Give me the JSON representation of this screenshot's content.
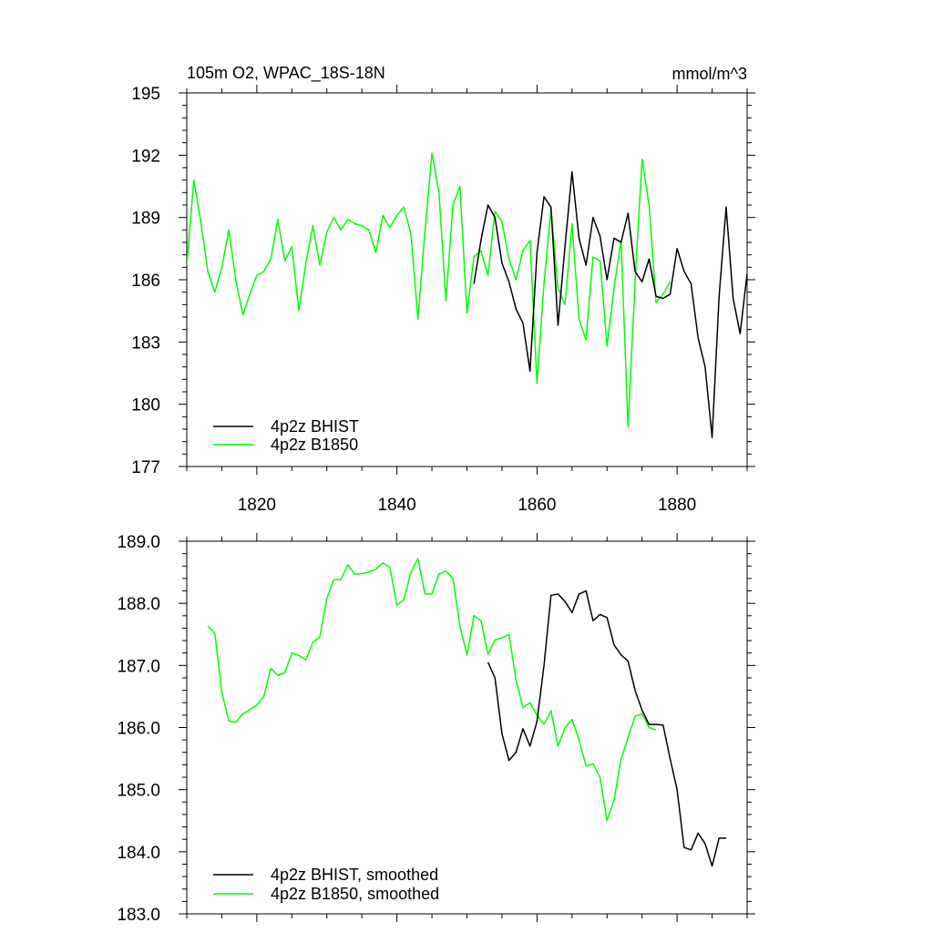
{
  "chart_data": [
    {
      "type": "line",
      "title": "105m O2, WPAC_18S-18N",
      "units": "mmol/m^3",
      "xlim": [
        1810,
        1890
      ],
      "ylim": [
        177,
        195
      ],
      "xticks": [
        1820,
        1840,
        1860,
        1880
      ],
      "xtick_labels": [
        "1820",
        "1840",
        "1860",
        "1880"
      ],
      "yticks": [
        177,
        180,
        183,
        186,
        189,
        192,
        195
      ],
      "ytick_labels": [
        "177",
        "180",
        "183",
        "186",
        "189",
        "192",
        "195"
      ],
      "legend": "bottom-left",
      "series": [
        {
          "name": "4p2z BHIST",
          "color": "#000000",
          "x": [
            1851,
            1852,
            1853,
            1854,
            1855,
            1856,
            1857,
            1858,
            1859,
            1860,
            1861,
            1862,
            1863,
            1864,
            1865,
            1866,
            1867,
            1868,
            1869,
            1870,
            1871,
            1872,
            1873,
            1874,
            1875,
            1876,
            1877,
            1878,
            1879,
            1880,
            1881,
            1882,
            1883,
            1884,
            1885,
            1886,
            1887,
            1888,
            1889,
            1890
          ],
          "y": [
            185.8,
            187.9,
            189.6,
            189.0,
            186.8,
            185.9,
            184.6,
            183.9,
            181.6,
            187.3,
            190.0,
            189.5,
            183.8,
            187.6,
            191.2,
            188.0,
            186.7,
            189.0,
            188.1,
            186.0,
            188.0,
            187.8,
            189.2,
            186.4,
            185.9,
            187.0,
            185.2,
            185.1,
            185.3,
            187.5,
            186.4,
            185.8,
            183.2,
            181.8,
            178.4,
            185.2,
            189.5,
            185.1,
            183.4,
            186.3
          ]
        },
        {
          "name": "4p2z B1850",
          "color": "#00ff00",
          "x": [
            1810,
            1811,
            1812,
            1813,
            1814,
            1815,
            1816,
            1817,
            1818,
            1819,
            1820,
            1821,
            1822,
            1823,
            1824,
            1825,
            1826,
            1827,
            1828,
            1829,
            1830,
            1831,
            1832,
            1833,
            1834,
            1835,
            1836,
            1837,
            1838,
            1839,
            1840,
            1841,
            1842,
            1843,
            1844,
            1845,
            1846,
            1847,
            1848,
            1849,
            1850,
            1851,
            1852,
            1853,
            1854,
            1855,
            1856,
            1857,
            1858,
            1859,
            1860,
            1861,
            1862,
            1863,
            1864,
            1865,
            1866,
            1867,
            1868,
            1869,
            1870,
            1871,
            1872,
            1873,
            1874,
            1875,
            1876,
            1877,
            1878,
            1879
          ],
          "y": [
            186.7,
            190.8,
            188.8,
            186.4,
            185.4,
            186.6,
            188.4,
            186.0,
            184.3,
            185.3,
            186.2,
            186.4,
            187.0,
            188.9,
            186.9,
            187.6,
            184.5,
            186.8,
            188.6,
            186.7,
            188.3,
            189.0,
            188.4,
            188.9,
            188.7,
            188.6,
            188.4,
            187.3,
            189.1,
            188.5,
            189.1,
            189.5,
            188.2,
            184.1,
            188.3,
            192.1,
            190.2,
            185.0,
            189.6,
            190.5,
            184.4,
            187.1,
            187.4,
            186.2,
            189.3,
            188.8,
            187.0,
            186.0,
            187.4,
            187.9,
            181.0,
            185.8,
            189.4,
            185.6,
            184.8,
            188.7,
            184.1,
            183.1,
            187.1,
            186.9,
            182.8,
            185.6,
            187.9,
            178.9,
            185.9,
            191.8,
            189.6,
            184.9,
            185.3,
            185.9
          ]
        }
      ]
    },
    {
      "type": "line",
      "xlim": [
        1810,
        1890
      ],
      "ylim": [
        183.0,
        189.0
      ],
      "xticks": [
        1820,
        1840,
        1860,
        1880
      ],
      "xtick_labels": [
        "",
        "",
        "",
        ""
      ],
      "yticks": [
        183.0,
        184.0,
        185.0,
        186.0,
        187.0,
        188.0,
        189.0
      ],
      "ytick_labels": [
        "183.0",
        "184.0",
        "185.0",
        "186.0",
        "187.0",
        "188.0",
        "189.0"
      ],
      "legend": "bottom-left",
      "series": [
        {
          "name": "4p2z BHIST, smoothed",
          "color": "#000000",
          "x": [
            1853,
            1854,
            1855,
            1856,
            1857,
            1858,
            1859,
            1860,
            1861,
            1862,
            1863,
            1864,
            1865,
            1866,
            1867,
            1868,
            1869,
            1870,
            1871,
            1872,
            1873,
            1874,
            1875,
            1876,
            1877,
            1878,
            1879,
            1880,
            1881,
            1882,
            1883,
            1884,
            1885,
            1886,
            1887
          ],
          "y": [
            187.05,
            186.8,
            185.9,
            185.47,
            185.6,
            185.98,
            185.7,
            186.1,
            187.0,
            188.13,
            188.15,
            188.03,
            187.85,
            188.15,
            188.2,
            187.72,
            187.82,
            187.77,
            187.33,
            187.17,
            187.07,
            186.6,
            186.28,
            186.05,
            186.05,
            186.04,
            185.5,
            185.0,
            184.07,
            184.03,
            184.3,
            184.13,
            183.77,
            184.22,
            184.22
          ]
        },
        {
          "name": "4p2z B1850, smoothed",
          "color": "#00ff00",
          "x": [
            1813,
            1814,
            1815,
            1816,
            1817,
            1818,
            1819,
            1820,
            1821,
            1822,
            1823,
            1824,
            1825,
            1826,
            1827,
            1828,
            1829,
            1830,
            1831,
            1832,
            1833,
            1834,
            1835,
            1836,
            1837,
            1838,
            1839,
            1840,
            1841,
            1842,
            1843,
            1844,
            1845,
            1846,
            1847,
            1848,
            1849,
            1850,
            1851,
            1852,
            1853,
            1854,
            1855,
            1856,
            1857,
            1858,
            1859,
            1860,
            1861,
            1862,
            1863,
            1864,
            1865,
            1866,
            1867,
            1868,
            1869,
            1870,
            1871,
            1872,
            1873,
            1874,
            1875,
            1876,
            1877
          ],
          "y": [
            187.63,
            187.52,
            186.57,
            186.11,
            186.08,
            186.22,
            186.29,
            186.36,
            186.5,
            186.95,
            186.84,
            186.88,
            187.2,
            187.16,
            187.09,
            187.37,
            187.46,
            188.08,
            188.38,
            188.38,
            188.62,
            188.47,
            188.48,
            188.5,
            188.55,
            188.65,
            188.58,
            187.97,
            188.06,
            188.5,
            188.72,
            188.15,
            188.15,
            188.47,
            188.52,
            188.4,
            187.63,
            187.17,
            187.8,
            187.72,
            187.18,
            187.41,
            187.44,
            187.5,
            186.77,
            186.32,
            186.4,
            186.2,
            186.05,
            186.27,
            185.7,
            186.0,
            186.13,
            185.8,
            185.38,
            185.42,
            185.2,
            184.5,
            184.83,
            185.49,
            185.84,
            186.18,
            186.22,
            186.0,
            185.96
          ]
        }
      ]
    }
  ]
}
